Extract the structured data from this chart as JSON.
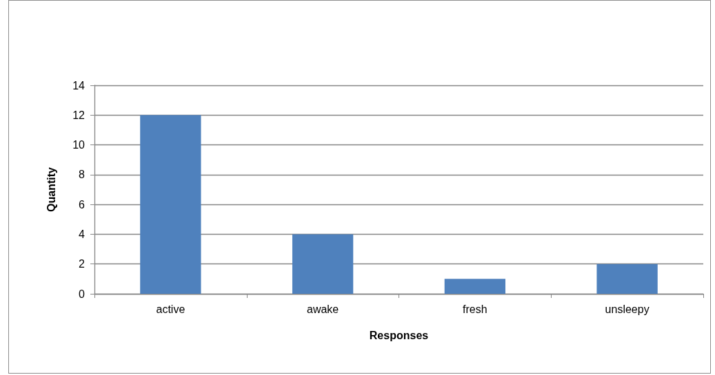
{
  "chart_data": {
    "type": "bar",
    "xlabel": "Responses",
    "ylabel": "Quantity",
    "categories": [
      "active",
      "awake",
      "fresh",
      "unsleepy"
    ],
    "series": [
      {
        "color": "#4f81bd",
        "values": [
          12,
          4,
          1,
          2
        ]
      }
    ],
    "ylim": [
      0,
      14
    ],
    "yticks": [
      0,
      2,
      4,
      6,
      8,
      10,
      12,
      14
    ],
    "grid": "y"
  }
}
